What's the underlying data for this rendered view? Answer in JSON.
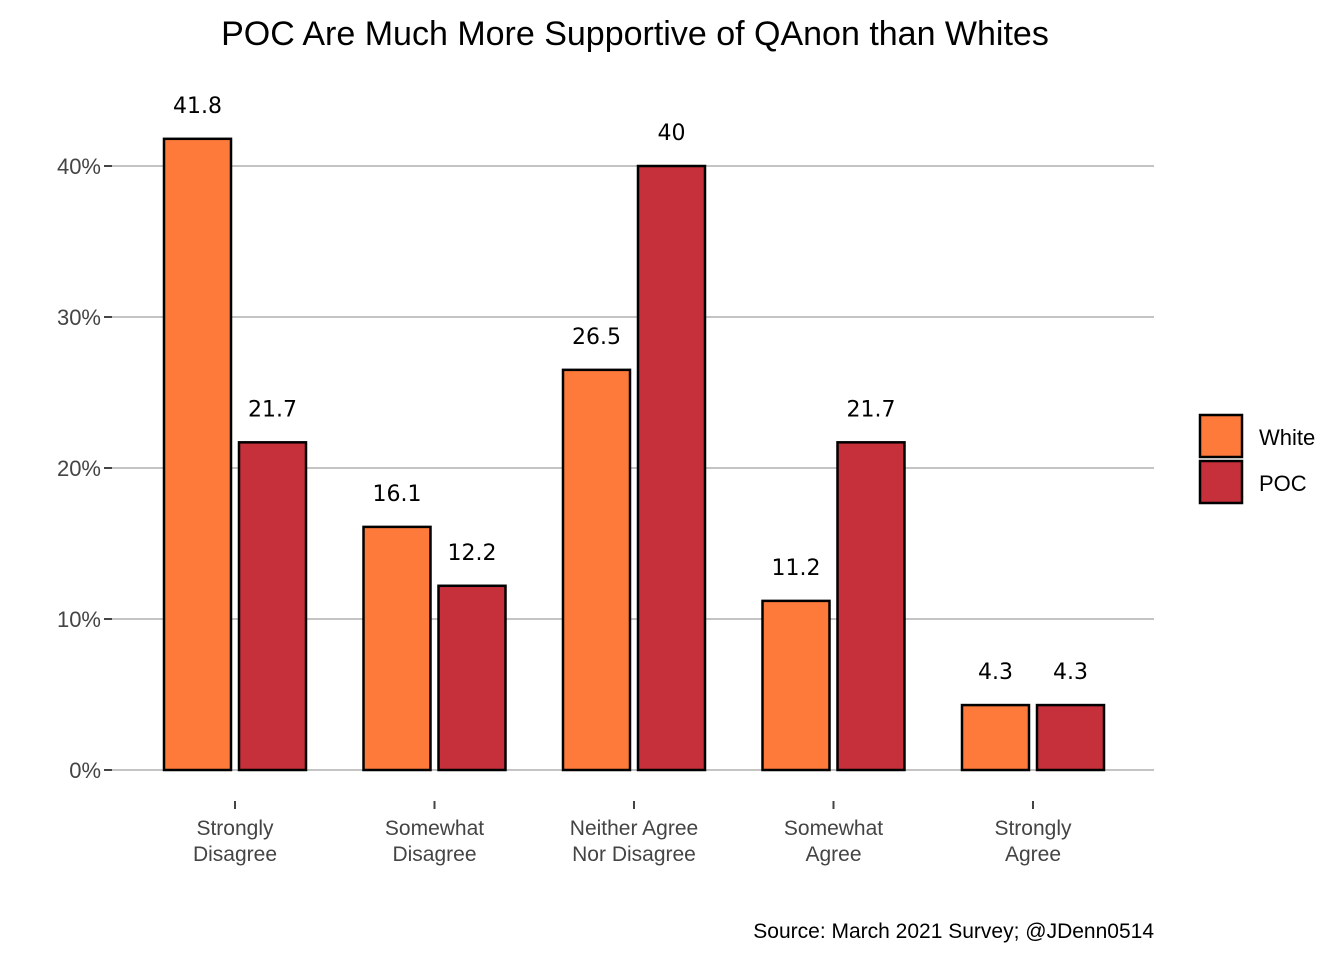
{
  "chart_data": {
    "type": "bar",
    "title": "POC Are Much More Supportive of QAnon than Whites",
    "caption": "Source: March 2021 Survey; @JDenn0514",
    "categories": [
      [
        "Strongly",
        "Disagree"
      ],
      [
        "Somewhat",
        "Disagree"
      ],
      [
        "Neither Agree",
        "Nor Disagree"
      ],
      [
        "Somewhat",
        "Agree"
      ],
      [
        "Strongly",
        "Agree"
      ]
    ],
    "series": [
      {
        "name": "White",
        "color": "#fe7a3a",
        "values": [
          41.8,
          16.1,
          26.5,
          11.2,
          4.3
        ],
        "labels": [
          "41.8",
          "16.1",
          "26.5",
          "11.2",
          "4.3"
        ]
      },
      {
        "name": "POC",
        "color": "#c5303a",
        "values": [
          21.7,
          12.2,
          40,
          21.7,
          4.3
        ],
        "labels": [
          "21.7",
          "12.2",
          "40",
          "21.7",
          "4.3"
        ]
      }
    ],
    "yticks": [
      0,
      10,
      20,
      30,
      40
    ],
    "ytick_labels": [
      "0%",
      "10%",
      "20%",
      "30%",
      "40%"
    ],
    "ylim": [
      0,
      44
    ],
    "grid": "horizontal",
    "legend": "right"
  }
}
